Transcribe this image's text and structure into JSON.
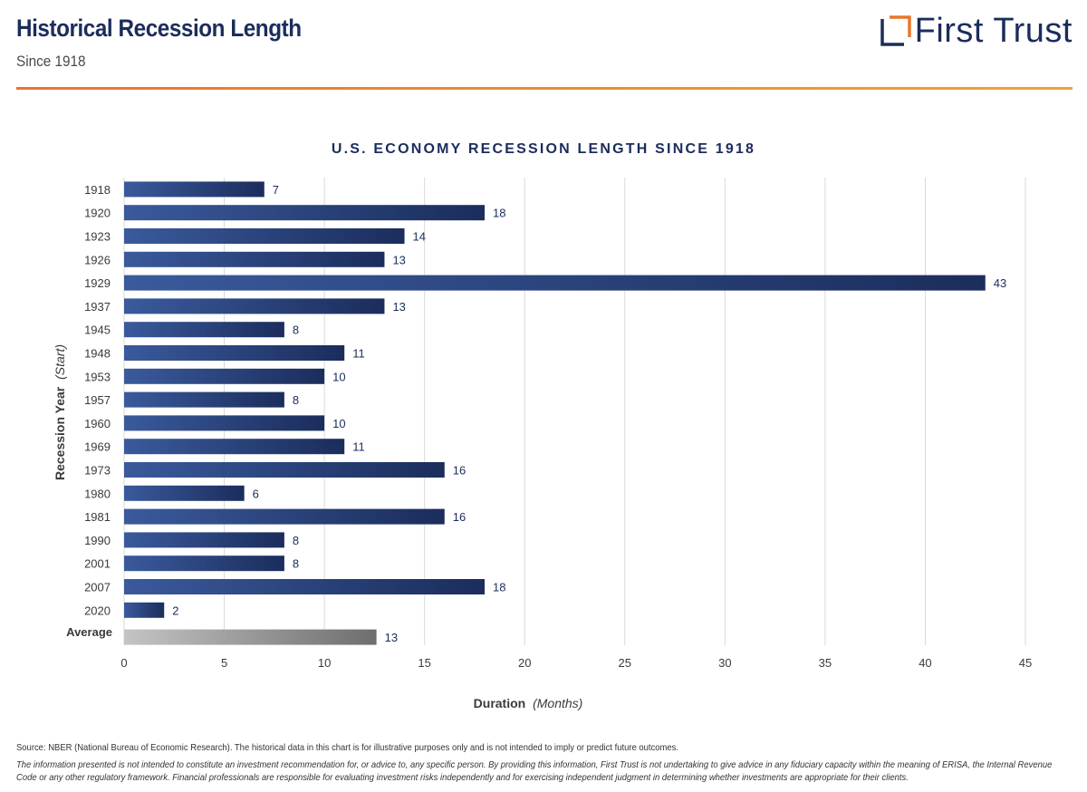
{
  "header": {
    "title": "Historical Recession Length",
    "subtitle": "Since 1918",
    "logo_text": "First Trust",
    "logo_icon": "first-trust-bracket-logo"
  },
  "colors": {
    "navy": "#1b2d5c",
    "bar_start": "#3a5a9c",
    "bar_end": "#1b2d5c",
    "avg_start": "#c4c4c4",
    "avg_end": "#6e6e6e",
    "accent_orange": "#e8762d",
    "grid": "#d9d9d9"
  },
  "chart_data": {
    "type": "bar",
    "orientation": "horizontal",
    "title": "U.S. ECONOMY RECESSION LENGTH SINCE 1918",
    "xlabel": "Duration",
    "xlabel_italic": "(Months)",
    "ylabel": "Recession Year",
    "ylabel_italic": "(Start)",
    "xlim": [
      0,
      45
    ],
    "xticks": [
      0,
      5,
      10,
      15,
      20,
      25,
      30,
      35,
      40,
      45
    ],
    "categories": [
      "1918",
      "1920",
      "1923",
      "1926",
      "1929",
      "1937",
      "1945",
      "1948",
      "1953",
      "1957",
      "1960",
      "1969",
      "1973",
      "1980",
      "1981",
      "1990",
      "2001",
      "2007",
      "2020"
    ],
    "values": [
      7,
      18,
      14,
      13,
      43,
      13,
      8,
      11,
      10,
      8,
      10,
      11,
      16,
      6,
      16,
      8,
      8,
      18,
      2
    ],
    "average": {
      "label": "Average",
      "value": 12.6,
      "display": "13"
    },
    "grid": true
  },
  "footer": {
    "source": "Source: NBER (National Bureau of Economic Research). The historical data in this chart is for illustrative purposes only and is not intended to imply or predict future outcomes.",
    "disclaimer": "The information presented is not intended to constitute an investment recommendation for, or advice to, any specific person. By providing this information, First Trust is not undertaking to give advice in any fiduciary capacity within the meaning of ERISA, the Internal Revenue Code or any other regulatory framework. Financial professionals are responsible for evaluating investment risks independently and for exercising independent judgment in determining whether investments are appropriate for their clients."
  }
}
